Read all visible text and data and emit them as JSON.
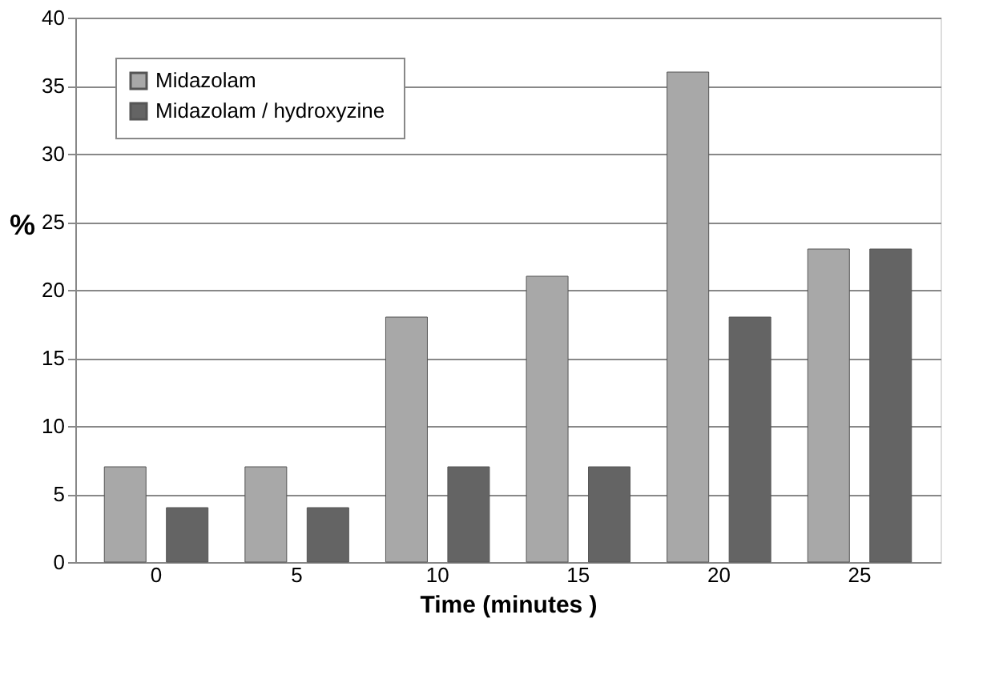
{
  "chart_data": {
    "type": "bar",
    "xlabel": "Time (minutes )",
    "ylabel": "%",
    "categories": [
      "0",
      "5",
      "10",
      "15",
      "20",
      "25"
    ],
    "series": [
      {
        "name": "Midazolam",
        "color": "#a8a8a8",
        "values": [
          7,
          7,
          18,
          21,
          36,
          23
        ]
      },
      {
        "name": "Midazolam  / hydroxyzine",
        "color": "#646464",
        "values": [
          4,
          4,
          7,
          7,
          18,
          23
        ]
      }
    ],
    "ylim": [
      0,
      40
    ],
    "yticks": [
      0,
      5,
      10,
      15,
      20,
      25,
      30,
      35,
      40
    ],
    "grid": "y",
    "legend": "top left"
  }
}
